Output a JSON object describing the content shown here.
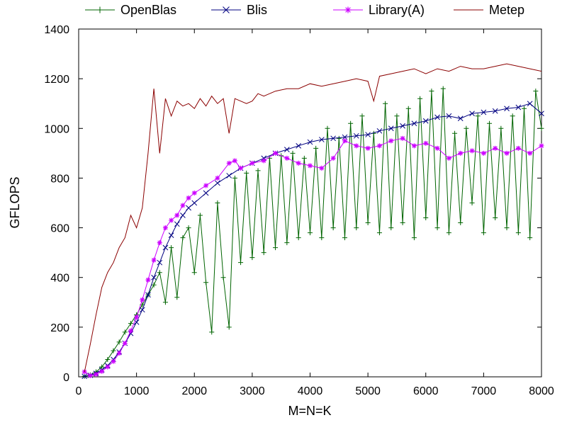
{
  "chart_data": {
    "type": "line",
    "title": "",
    "xlabel": "M=N=K",
    "ylabel": "GFLOPS",
    "xlim": [
      0,
      8000
    ],
    "ylim": [
      0,
      1400
    ],
    "x_ticks": [
      0,
      1000,
      2000,
      3000,
      4000,
      5000,
      6000,
      7000,
      8000
    ],
    "y_ticks": [
      0,
      200,
      400,
      600,
      800,
      1000,
      1200,
      1400
    ],
    "legend_position": "top",
    "series": [
      {
        "name": "OpenBlas",
        "color": "#006400",
        "marker": "plus",
        "points": [
          [
            100,
            2
          ],
          [
            200,
            8
          ],
          [
            300,
            20
          ],
          [
            400,
            40
          ],
          [
            500,
            70
          ],
          [
            600,
            105
          ],
          [
            700,
            140
          ],
          [
            800,
            180
          ],
          [
            900,
            215
          ],
          [
            1000,
            250
          ],
          [
            1100,
            290
          ],
          [
            1200,
            330
          ],
          [
            1300,
            370
          ],
          [
            1400,
            420
          ],
          [
            1500,
            300
          ],
          [
            1600,
            520
          ],
          [
            1700,
            320
          ],
          [
            1800,
            560
          ],
          [
            1900,
            600
          ],
          [
            2000,
            420
          ],
          [
            2100,
            650
          ],
          [
            2200,
            380
          ],
          [
            2300,
            180
          ],
          [
            2400,
            700
          ],
          [
            2500,
            400
          ],
          [
            2600,
            200
          ],
          [
            2700,
            800
          ],
          [
            2800,
            460
          ],
          [
            2900,
            820
          ],
          [
            3000,
            480
          ],
          [
            3100,
            830
          ],
          [
            3200,
            500
          ],
          [
            3300,
            880
          ],
          [
            3400,
            520
          ],
          [
            3500,
            890
          ],
          [
            3600,
            540
          ],
          [
            3700,
            900
          ],
          [
            3800,
            560
          ],
          [
            3900,
            880
          ],
          [
            4000,
            580
          ],
          [
            4100,
            920
          ],
          [
            4200,
            560
          ],
          [
            4300,
            1000
          ],
          [
            4400,
            600
          ],
          [
            4500,
            960
          ],
          [
            4600,
            560
          ],
          [
            4700,
            1020
          ],
          [
            4800,
            600
          ],
          [
            4900,
            1050
          ],
          [
            5000,
            620
          ],
          [
            5100,
            980
          ],
          [
            5200,
            580
          ],
          [
            5300,
            1100
          ],
          [
            5400,
            600
          ],
          [
            5500,
            1050
          ],
          [
            5600,
            620
          ],
          [
            5700,
            1080
          ],
          [
            5800,
            560
          ],
          [
            5900,
            1120
          ],
          [
            6000,
            640
          ],
          [
            6100,
            1150
          ],
          [
            6200,
            600
          ],
          [
            6300,
            1160
          ],
          [
            6400,
            580
          ],
          [
            6500,
            980
          ],
          [
            6600,
            620
          ],
          [
            6700,
            1000
          ],
          [
            6800,
            700
          ],
          [
            6900,
            1050
          ],
          [
            7000,
            580
          ],
          [
            7100,
            1020
          ],
          [
            7200,
            640
          ],
          [
            7300,
            1000
          ],
          [
            7400,
            600
          ],
          [
            7500,
            1050
          ],
          [
            7600,
            580
          ],
          [
            7700,
            1080
          ],
          [
            7800,
            560
          ],
          [
            7900,
            1150
          ],
          [
            8000,
            1000
          ]
        ]
      },
      {
        "name": "Blis",
        "color": "#000080",
        "marker": "cross",
        "points": [
          [
            100,
            2
          ],
          [
            200,
            6
          ],
          [
            300,
            14
          ],
          [
            400,
            28
          ],
          [
            500,
            45
          ],
          [
            600,
            70
          ],
          [
            700,
            100
          ],
          [
            800,
            135
          ],
          [
            900,
            175
          ],
          [
            1000,
            220
          ],
          [
            1100,
            270
          ],
          [
            1200,
            330
          ],
          [
            1300,
            400
          ],
          [
            1400,
            460
          ],
          [
            1500,
            520
          ],
          [
            1600,
            570
          ],
          [
            1700,
            615
          ],
          [
            1800,
            650
          ],
          [
            1900,
            680
          ],
          [
            2000,
            700
          ],
          [
            2200,
            740
          ],
          [
            2400,
            780
          ],
          [
            2600,
            810
          ],
          [
            2800,
            840
          ],
          [
            3000,
            860
          ],
          [
            3200,
            880
          ],
          [
            3400,
            900
          ],
          [
            3600,
            915
          ],
          [
            3800,
            930
          ],
          [
            4000,
            945
          ],
          [
            4200,
            955
          ],
          [
            4400,
            960
          ],
          [
            4600,
            965
          ],
          [
            4800,
            970
          ],
          [
            5000,
            975
          ],
          [
            5200,
            990
          ],
          [
            5400,
            1000
          ],
          [
            5600,
            1010
          ],
          [
            5800,
            1020
          ],
          [
            6000,
            1030
          ],
          [
            6200,
            1045
          ],
          [
            6400,
            1050
          ],
          [
            6600,
            1040
          ],
          [
            6800,
            1060
          ],
          [
            7000,
            1065
          ],
          [
            7200,
            1070
          ],
          [
            7400,
            1080
          ],
          [
            7600,
            1085
          ],
          [
            7800,
            1100
          ],
          [
            8000,
            1060
          ]
        ]
      },
      {
        "name": "Library(A)",
        "color": "#cc00ff",
        "marker": "star",
        "points": [
          [
            100,
            20
          ],
          [
            200,
            5
          ],
          [
            300,
            10
          ],
          [
            400,
            22
          ],
          [
            500,
            40
          ],
          [
            600,
            62
          ],
          [
            700,
            95
          ],
          [
            800,
            135
          ],
          [
            900,
            185
          ],
          [
            1000,
            240
          ],
          [
            1100,
            310
          ],
          [
            1200,
            390
          ],
          [
            1300,
            470
          ],
          [
            1400,
            540
          ],
          [
            1500,
            600
          ],
          [
            1600,
            630
          ],
          [
            1700,
            650
          ],
          [
            1800,
            690
          ],
          [
            1900,
            720
          ],
          [
            2000,
            740
          ],
          [
            2200,
            770
          ],
          [
            2400,
            800
          ],
          [
            2600,
            860
          ],
          [
            2700,
            870
          ],
          [
            2800,
            840
          ],
          [
            3000,
            860
          ],
          [
            3200,
            870
          ],
          [
            3400,
            900
          ],
          [
            3600,
            880
          ],
          [
            3800,
            860
          ],
          [
            4000,
            850
          ],
          [
            4200,
            840
          ],
          [
            4400,
            880
          ],
          [
            4600,
            950
          ],
          [
            4800,
            930
          ],
          [
            5000,
            920
          ],
          [
            5200,
            930
          ],
          [
            5400,
            950
          ],
          [
            5600,
            960
          ],
          [
            5800,
            930
          ],
          [
            6000,
            940
          ],
          [
            6200,
            920
          ],
          [
            6400,
            880
          ],
          [
            6600,
            900
          ],
          [
            6800,
            910
          ],
          [
            7000,
            900
          ],
          [
            7200,
            920
          ],
          [
            7400,
            900
          ],
          [
            7600,
            920
          ],
          [
            7800,
            900
          ],
          [
            8000,
            930
          ]
        ]
      },
      {
        "name": "Metep",
        "color": "#8b0000",
        "marker": "none",
        "points": [
          [
            100,
            20
          ],
          [
            200,
            130
          ],
          [
            300,
            250
          ],
          [
            400,
            360
          ],
          [
            500,
            420
          ],
          [
            600,
            460
          ],
          [
            700,
            520
          ],
          [
            800,
            560
          ],
          [
            900,
            650
          ],
          [
            1000,
            600
          ],
          [
            1100,
            680
          ],
          [
            1200,
            900
          ],
          [
            1300,
            1160
          ],
          [
            1400,
            900
          ],
          [
            1500,
            1120
          ],
          [
            1600,
            1050
          ],
          [
            1700,
            1110
          ],
          [
            1800,
            1090
          ],
          [
            1900,
            1100
          ],
          [
            2000,
            1080
          ],
          [
            2100,
            1120
          ],
          [
            2200,
            1090
          ],
          [
            2300,
            1130
          ],
          [
            2400,
            1100
          ],
          [
            2500,
            1120
          ],
          [
            2600,
            980
          ],
          [
            2700,
            1120
          ],
          [
            2800,
            1110
          ],
          [
            2900,
            1100
          ],
          [
            3000,
            1110
          ],
          [
            3100,
            1140
          ],
          [
            3200,
            1130
          ],
          [
            3400,
            1150
          ],
          [
            3600,
            1160
          ],
          [
            3800,
            1160
          ],
          [
            4000,
            1180
          ],
          [
            4200,
            1170
          ],
          [
            4400,
            1180
          ],
          [
            4600,
            1190
          ],
          [
            4800,
            1200
          ],
          [
            5000,
            1190
          ],
          [
            5100,
            1110
          ],
          [
            5200,
            1210
          ],
          [
            5400,
            1220
          ],
          [
            5600,
            1230
          ],
          [
            5800,
            1240
          ],
          [
            6000,
            1220
          ],
          [
            6200,
            1240
          ],
          [
            6400,
            1230
          ],
          [
            6600,
            1250
          ],
          [
            6800,
            1240
          ],
          [
            7000,
            1240
          ],
          [
            7200,
            1250
          ],
          [
            7400,
            1260
          ],
          [
            7600,
            1250
          ],
          [
            7800,
            1240
          ],
          [
            8000,
            1230
          ]
        ]
      }
    ]
  }
}
